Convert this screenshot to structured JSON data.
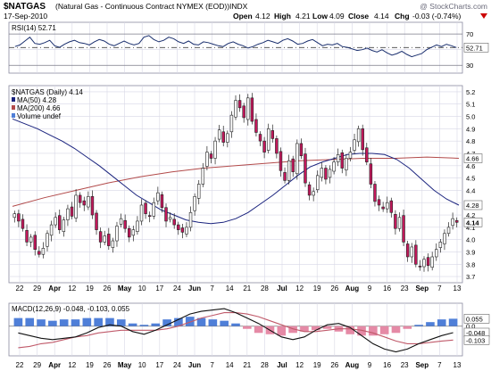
{
  "header": {
    "symbol": "$NATGAS",
    "description": "(Natural Gas - Continuous Contract NYMEX (EOD))",
    "exchange": "INDX",
    "watermark": "@ StockCharts.com",
    "date": "17-Sep-2010",
    "open_label": "Open",
    "open": "4.12",
    "high_label": "High",
    "high": "4.21",
    "low_label": "Low",
    "low": "4.09",
    "close_label": "Close",
    "close": "4.14",
    "chg_label": "Chg",
    "chg": "-0.03 (-0.74%)",
    "chg_icon": "down-triangle-icon"
  },
  "colors": {
    "background": "#ffffff",
    "panel_border": "#8a8aa0",
    "grid": "#d8d8e6",
    "up_candle": "#ffffff",
    "down_candle": "#c2185b",
    "ma50": "#1a237e",
    "ma200": "#b24a4a",
    "rsi": "#1a2f6e",
    "macd_line": "#111111",
    "signal_line": "#c05a6a",
    "hist_pos": "#4f7fd8",
    "hist_neg": "#e58aa6",
    "chg_red": "#cc0000"
  },
  "x_axis": {
    "labels": [
      "22",
      "29",
      "Apr",
      "12",
      "19",
      "26",
      "May",
      "10",
      "17",
      "24",
      "Jun",
      "7",
      "14",
      "21",
      "28",
      "Jul",
      "12",
      "19",
      "26",
      "Aug",
      "9",
      "16",
      "23",
      "Sep",
      "7",
      "13"
    ],
    "bold_labels": [
      "Apr",
      "May",
      "Jun",
      "Jul",
      "Aug",
      "Sep"
    ]
  },
  "chart_data": [
    {
      "panel": "RSI",
      "type": "line",
      "legend": "RSI(14) 52.71",
      "current_value": 52.71,
      "ylim": [
        20,
        85
      ],
      "y_ticks": [
        30,
        50,
        70
      ],
      "reference_lines": [
        30,
        70
      ],
      "values": [
        54,
        56,
        61,
        66,
        58,
        57,
        59,
        62,
        55,
        53,
        57,
        60,
        62,
        59,
        58,
        56,
        60,
        63,
        61,
        57,
        55,
        58,
        61,
        58,
        56,
        58,
        66,
        68,
        63,
        60,
        62,
        66,
        64,
        60,
        58,
        61,
        57,
        56,
        60,
        59,
        57,
        55,
        54,
        58,
        60,
        57,
        55,
        52,
        54,
        57,
        59,
        62,
        60,
        58,
        62,
        64,
        61,
        57,
        58,
        61,
        63,
        59,
        55,
        57,
        56,
        58,
        54,
        53,
        51,
        49,
        50,
        52,
        49,
        47,
        50,
        46,
        43,
        45,
        48,
        44,
        41,
        43,
        45,
        50,
        53,
        56,
        54,
        57,
        55,
        52.71
      ]
    },
    {
      "panel": "Price",
      "type": "candlestick",
      "legend_title": "$NATGAS (Daily) 4.14",
      "series": [
        {
          "name": "MA(50) 4.28",
          "current": 4.28
        },
        {
          "name": "MA(200) 4.66",
          "current": 4.66
        },
        {
          "name": "Volume undef"
        }
      ],
      "ylim": [
        3.65,
        5.25
      ],
      "y_ticks": [
        3.7,
        3.8,
        3.9,
        4.0,
        4.1,
        4.2,
        4.3,
        4.4,
        4.5,
        4.6,
        4.7,
        4.8,
        4.9,
        5.0,
        5.1,
        5.2
      ],
      "last_value_labels": [
        {
          "text": "4.66",
          "value": 4.66
        },
        {
          "text": "4.28",
          "value": 4.28
        },
        {
          "text": "4.14",
          "value": 4.14
        }
      ],
      "close": [
        4.21,
        4.15,
        4.09,
        3.98,
        4.02,
        3.92,
        3.88,
        3.93,
        4.05,
        4.12,
        4.18,
        4.08,
        4.16,
        4.25,
        4.19,
        4.36,
        4.3,
        4.28,
        4.35,
        4.2,
        4.08,
        3.98,
        4.03,
        3.95,
        3.99,
        4.11,
        4.17,
        4.09,
        4.02,
        4.08,
        4.15,
        4.28,
        4.21,
        4.19,
        4.3,
        4.38,
        4.26,
        4.15,
        4.18,
        4.12,
        4.08,
        4.06,
        4.1,
        4.22,
        4.35,
        4.45,
        4.58,
        4.71,
        4.66,
        4.8,
        4.89,
        4.79,
        4.86,
        5.01,
        5.13,
        5.07,
        4.99,
        5.15,
        4.96,
        4.87,
        4.8,
        4.71,
        4.9,
        4.82,
        4.7,
        4.56,
        4.48,
        4.64,
        4.55,
        4.78,
        4.68,
        4.46,
        4.36,
        4.39,
        4.52,
        4.58,
        4.49,
        4.57,
        4.63,
        4.69,
        4.58,
        4.66,
        4.71,
        4.81,
        4.9,
        4.73,
        4.63,
        4.45,
        4.31,
        4.28,
        4.25,
        4.3,
        4.22,
        4.09,
        4.18,
        3.98,
        3.86,
        3.94,
        3.8,
        3.78,
        3.84,
        3.79,
        3.86,
        3.92,
        3.98,
        4.05,
        4.1,
        4.17,
        4.14
      ],
      "ma50": [
        4.98,
        4.94,
        4.9,
        4.85,
        4.8,
        4.74,
        4.67,
        4.6,
        4.52,
        4.44,
        4.36,
        4.3,
        4.24,
        4.2,
        4.16,
        4.14,
        4.13,
        4.14,
        4.17,
        4.22,
        4.29,
        4.36,
        4.44,
        4.52,
        4.59,
        4.63,
        4.66,
        4.69,
        4.7,
        4.7,
        4.69,
        4.65,
        4.58,
        4.49,
        4.4,
        4.33,
        4.28
      ],
      "ma200": [
        4.27,
        4.34,
        4.4,
        4.46,
        4.51,
        4.55,
        4.58,
        4.6,
        4.62,
        4.64,
        4.65,
        4.66,
        4.66,
        4.67,
        4.66
      ]
    },
    {
      "panel": "MACD",
      "type": "line",
      "legend": "MACD(12,26,9) -0.048, -0.103, 0.055",
      "values_text": [
        {
          "text": "0.055",
          "value": 0.055
        },
        {
          "text": "-0.048",
          "value": -0.048
        },
        {
          "text": "-0.103",
          "value": -0.103
        }
      ],
      "ylim": [
        -0.22,
        0.17
      ],
      "y_ticks": [
        0.0
      ],
      "macd": [
        -0.05,
        -0.07,
        -0.09,
        -0.1,
        -0.09,
        -0.08,
        -0.05,
        -0.01,
        0.01,
        -0.0,
        -0.04,
        -0.06,
        -0.03,
        0.01,
        0.05,
        0.09,
        0.11,
        0.12,
        0.13,
        0.1,
        0.06,
        0.02,
        -0.03,
        -0.08,
        -0.1,
        -0.08,
        -0.03,
        0.01,
        0.02,
        -0.01,
        -0.07,
        -0.13,
        -0.17,
        -0.19,
        -0.17,
        -0.13,
        -0.1,
        -0.07,
        -0.048
      ],
      "signal": [
        -0.16,
        -0.15,
        -0.13,
        -0.12,
        -0.1,
        -0.08,
        -0.07,
        -0.05,
        -0.04,
        -0.03,
        -0.03,
        -0.03,
        -0.03,
        -0.02,
        0.0,
        0.03,
        0.06,
        0.08,
        0.1,
        0.1,
        0.09,
        0.07,
        0.04,
        0.01,
        -0.02,
        -0.04,
        -0.04,
        -0.03,
        -0.02,
        -0.02,
        -0.03,
        -0.05,
        -0.08,
        -0.11,
        -0.13,
        -0.13,
        -0.12,
        -0.11,
        -0.103
      ],
      "histogram": [
        0.06,
        0.06,
        0.05,
        0.04,
        0.05,
        0.05,
        0.06,
        0.06,
        0.06,
        0.05,
        0.02,
        0.01,
        0.02,
        0.05,
        0.06,
        0.07,
        0.06,
        0.05,
        0.04,
        0.02,
        -0.02,
        -0.05,
        -0.06,
        -0.07,
        -0.05,
        -0.04,
        -0.03,
        -0.02,
        -0.04,
        -0.06,
        -0.07,
        -0.07,
        -0.06,
        -0.05,
        -0.02,
        0.01,
        0.03,
        0.05,
        0.055
      ]
    }
  ]
}
